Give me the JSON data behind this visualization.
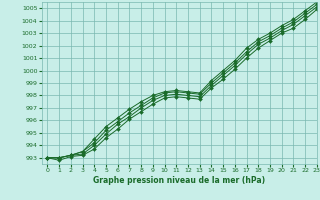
{
  "xlabel": "Graphe pression niveau de la mer (hPa)",
  "bg_color": "#c8eee8",
  "grid_color": "#7ab8b0",
  "line_color": "#1a6b2a",
  "marker_color": "#1a6b2a",
  "xlim": [
    -0.5,
    23
  ],
  "ylim": [
    992.5,
    1005.5
  ],
  "yticks": [
    993,
    994,
    995,
    996,
    997,
    998,
    999,
    1000,
    1001,
    1002,
    1003,
    1004,
    1005
  ],
  "xticks": [
    0,
    1,
    2,
    3,
    4,
    5,
    6,
    7,
    8,
    9,
    10,
    11,
    12,
    13,
    14,
    15,
    16,
    17,
    18,
    19,
    20,
    21,
    22,
    23
  ],
  "series": [
    [
      993.0,
      992.8,
      993.1,
      993.2,
      993.7,
      994.6,
      995.3,
      996.1,
      996.7,
      997.3,
      997.8,
      997.9,
      997.8,
      997.7,
      998.6,
      999.3,
      1000.1,
      1001.0,
      1001.8,
      1002.4,
      1003.0,
      1003.4,
      1004.1,
      1004.9
    ],
    [
      993.0,
      993.0,
      993.2,
      993.3,
      994.0,
      994.9,
      995.7,
      996.3,
      997.0,
      997.6,
      998.0,
      998.1,
      998.0,
      997.9,
      998.8,
      999.6,
      1000.4,
      1001.3,
      1002.1,
      1002.6,
      1003.2,
      1003.7,
      1004.4,
      1005.1
    ],
    [
      993.0,
      993.0,
      993.2,
      993.5,
      994.2,
      995.2,
      995.9,
      996.6,
      997.2,
      997.8,
      998.2,
      998.3,
      998.2,
      998.1,
      999.0,
      999.8,
      1000.6,
      1001.5,
      1002.3,
      1002.8,
      1003.4,
      1003.9,
      1004.6,
      1005.3
    ],
    [
      993.0,
      993.0,
      993.2,
      993.5,
      994.5,
      995.5,
      996.2,
      996.9,
      997.5,
      998.0,
      998.3,
      998.4,
      998.3,
      998.2,
      999.2,
      1000.0,
      1000.8,
      1001.8,
      1002.5,
      1003.0,
      1003.6,
      1004.1,
      1004.8,
      1005.5
    ]
  ]
}
